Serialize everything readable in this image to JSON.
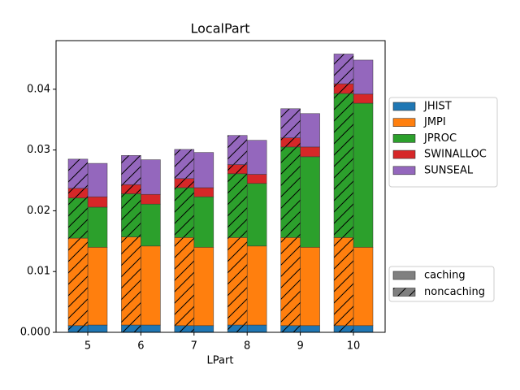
{
  "chart_data": {
    "type": "bar",
    "stacked": true,
    "title": "LocalPart",
    "x_label": "LPart",
    "categories": [
      "5",
      "6",
      "7",
      "8",
      "9",
      "10"
    ],
    "groups": [
      {
        "name": "caching",
        "hatched": false
      },
      {
        "name": "noncaching",
        "hatched": true
      }
    ],
    "series": [
      {
        "name": "JHIST",
        "color": "#1f77b4",
        "values": [
          [
            0.0012,
            0.0012,
            0.0011,
            0.0012,
            0.0011,
            0.0011
          ],
          [
            0.0011,
            0.0012,
            0.0011,
            0.0012,
            0.0011,
            0.0011
          ]
        ]
      },
      {
        "name": "JMPI",
        "color": "#ff7f0e",
        "values": [
          [
            0.0128,
            0.013,
            0.0129,
            0.013,
            0.0129,
            0.0129
          ],
          [
            0.0144,
            0.0145,
            0.0145,
            0.0144,
            0.0145,
            0.0145
          ]
        ]
      },
      {
        "name": "JPROC",
        "color": "#2ca02c",
        "values": [
          [
            0.0066,
            0.0069,
            0.0083,
            0.0103,
            0.0149,
            0.0237
          ],
          [
            0.0066,
            0.0071,
            0.0082,
            0.0105,
            0.0149,
            0.0237
          ]
        ]
      },
      {
        "name": "SWINALLOC",
        "color": "#d62728",
        "values": [
          [
            0.0017,
            0.0016,
            0.0015,
            0.0015,
            0.0016,
            0.0015
          ],
          [
            0.0016,
            0.0015,
            0.0015,
            0.0015,
            0.0015,
            0.0016
          ]
        ]
      },
      {
        "name": "SUNSEAL",
        "color": "#9467bd",
        "values": [
          [
            0.0055,
            0.0057,
            0.0058,
            0.0056,
            0.0055,
            0.0056
          ],
          [
            0.0048,
            0.0048,
            0.0048,
            0.0048,
            0.0048,
            0.0049
          ]
        ]
      }
    ],
    "ylim": [
      0,
      0.048
    ],
    "yticks": [
      {
        "value": 0,
        "label": "0.000"
      },
      {
        "value": 0.01,
        "label": "0.01"
      },
      {
        "value": 0.02,
        "label": "0.02"
      },
      {
        "value": 0.03,
        "label": "0.03"
      },
      {
        "value": 0.04,
        "label": "0.04"
      }
    ],
    "grid": false
  }
}
